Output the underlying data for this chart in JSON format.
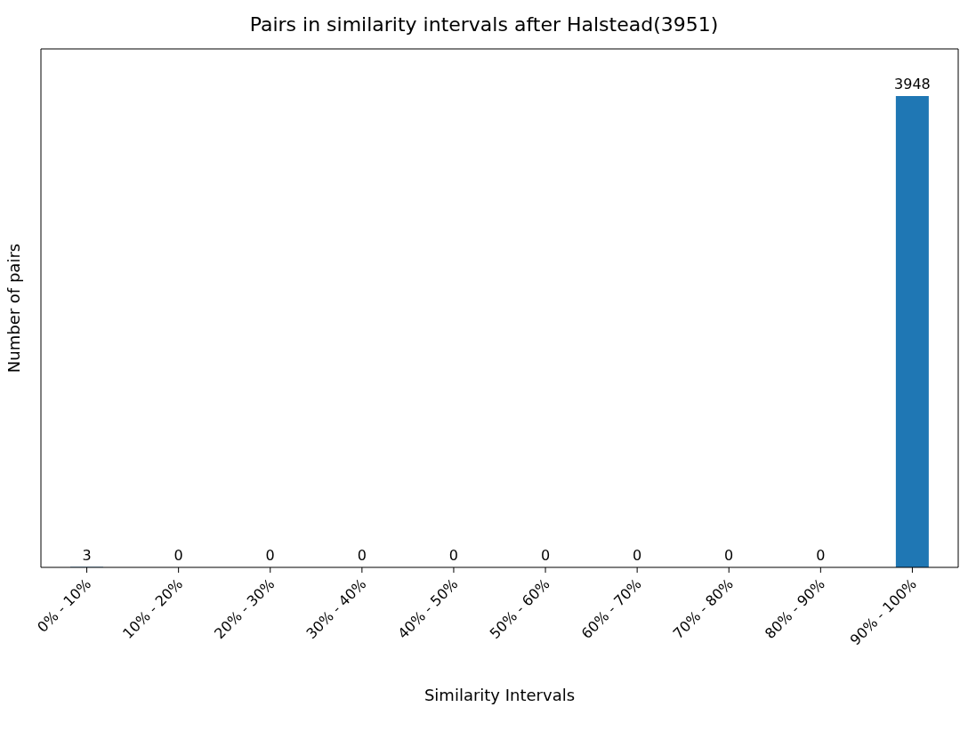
{
  "chart_data": {
    "type": "bar",
    "title": "Pairs in similarity intervals after Halstead(3951)",
    "xlabel": "Similarity Intervals",
    "ylabel": "Number of pairs",
    "categories": [
      "0% - 10%",
      "10% - 20%",
      "20% - 30%",
      "30% - 40%",
      "40% - 50%",
      "50% - 60%",
      "60% - 70%",
      "70% - 80%",
      "80% - 90%",
      "90% - 100%"
    ],
    "values": [
      3,
      0,
      0,
      0,
      0,
      0,
      0,
      0,
      0,
      3948
    ],
    "color": "#1f77b4",
    "data_labels": true,
    "tick_labels": "x"
  }
}
